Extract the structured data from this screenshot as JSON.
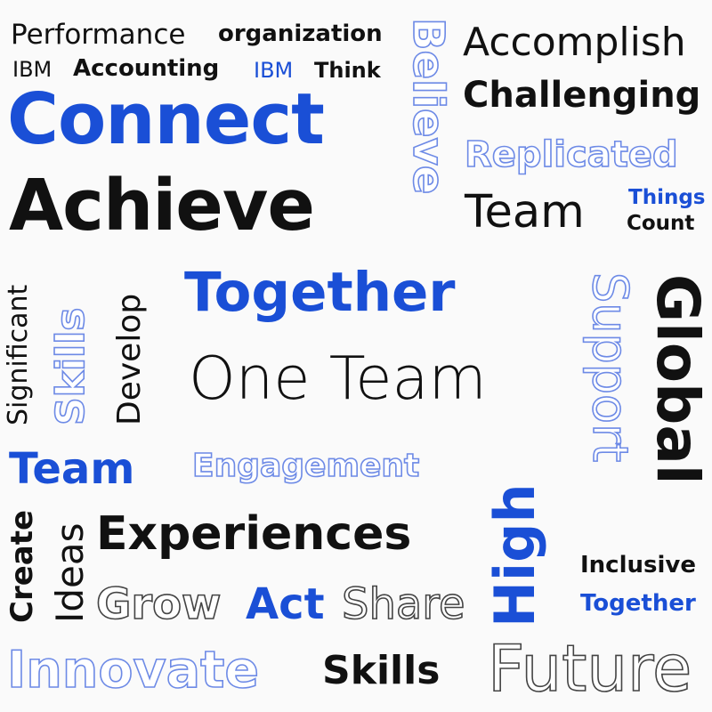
{
  "colors": {
    "background": "#fafafa",
    "black": "#111111",
    "blue": "#1a4fd6",
    "light_blue_outline": "#6d8ae6"
  },
  "words": {
    "performance": "Performance",
    "organization": "organization",
    "ibm_1": "IBM",
    "accounting": "Accounting",
    "ibm_2": "IBM",
    "think": "Think",
    "connect": "Connect",
    "achieve": "Achieve",
    "believe": "Believe",
    "accomplish": "Accomplish",
    "challenging": "Challenging",
    "replicated": "Replicated",
    "team_1": "Team",
    "things": "Things",
    "count": "Count",
    "significant": "Significant",
    "skills_1": "Skills",
    "develop": "Develop",
    "together_1": "Together",
    "support": "Support",
    "global": "Global",
    "one_team": "One Team",
    "team_2": "Team",
    "engagement": "Engagement",
    "high": "High",
    "create": "Create",
    "ideas": "Ideas",
    "experiences": "Experiences",
    "inclusive": "Inclusive",
    "together_2": "Together",
    "grow": "Grow",
    "act": "Act",
    "share": "Share",
    "innovate": "Innovate",
    "skills_2": "Skills",
    "future": "Future"
  }
}
